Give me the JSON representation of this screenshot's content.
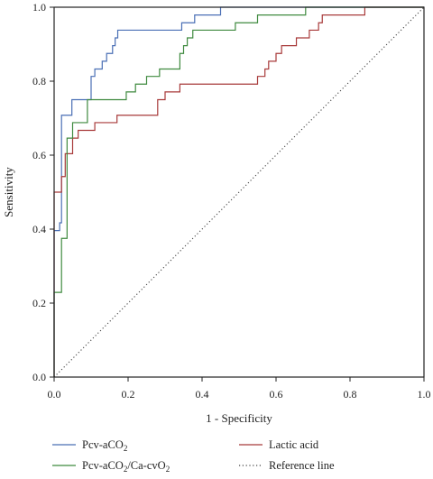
{
  "chart_data": {
    "type": "line",
    "title": "",
    "xlabel": "1 - Specificity",
    "ylabel": "Sensitivity",
    "xlim": [
      0,
      1
    ],
    "ylim": [
      0,
      1
    ],
    "x_ticks": [
      "0.0",
      "0.2",
      "0.4",
      "0.6",
      "0.8",
      "1.0"
    ],
    "y_ticks": [
      "0.0",
      "0.2",
      "0.4",
      "0.6",
      "0.8",
      "1.0"
    ],
    "grid": false,
    "legend_position": "bottom",
    "series": [
      {
        "name": "Pcv-aCO2",
        "legend_main": "Pcv-aCO",
        "legend_parts": [
          [
            "Pcv-aCO",
            ""
          ],
          [
            "2",
            "sub"
          ]
        ],
        "color": "#4a6fb5",
        "style": "solid",
        "points": [
          [
            0,
            0
          ],
          [
            0,
            0.396
          ],
          [
            0.015,
            0.396
          ],
          [
            0.015,
            0.417
          ],
          [
            0.02,
            0.417
          ],
          [
            0.02,
            0.708
          ],
          [
            0.048,
            0.708
          ],
          [
            0.048,
            0.75
          ],
          [
            0.1,
            0.75
          ],
          [
            0.1,
            0.813
          ],
          [
            0.11,
            0.813
          ],
          [
            0.11,
            0.833
          ],
          [
            0.13,
            0.833
          ],
          [
            0.13,
            0.854
          ],
          [
            0.142,
            0.854
          ],
          [
            0.142,
            0.875
          ],
          [
            0.158,
            0.875
          ],
          [
            0.158,
            0.896
          ],
          [
            0.165,
            0.896
          ],
          [
            0.165,
            0.917
          ],
          [
            0.172,
            0.917
          ],
          [
            0.172,
            0.938
          ],
          [
            0.345,
            0.938
          ],
          [
            0.345,
            0.958
          ],
          [
            0.38,
            0.958
          ],
          [
            0.38,
            0.979
          ],
          [
            0.45,
            0.979
          ],
          [
            0.45,
            1.0
          ],
          [
            1.0,
            1.0
          ]
        ]
      },
      {
        "name": "Lactic acid",
        "legend_main": "Lactic acid",
        "legend_parts": [
          [
            "Lactic acid",
            ""
          ]
        ],
        "color": "#a83a3a",
        "style": "solid",
        "points": [
          [
            0,
            0
          ],
          [
            0,
            0.5
          ],
          [
            0.02,
            0.5
          ],
          [
            0.02,
            0.542
          ],
          [
            0.03,
            0.542
          ],
          [
            0.03,
            0.604
          ],
          [
            0.05,
            0.604
          ],
          [
            0.05,
            0.646
          ],
          [
            0.065,
            0.646
          ],
          [
            0.065,
            0.667
          ],
          [
            0.11,
            0.667
          ],
          [
            0.11,
            0.688
          ],
          [
            0.17,
            0.688
          ],
          [
            0.17,
            0.708
          ],
          [
            0.28,
            0.708
          ],
          [
            0.28,
            0.75
          ],
          [
            0.3,
            0.75
          ],
          [
            0.3,
            0.771
          ],
          [
            0.34,
            0.771
          ],
          [
            0.34,
            0.792
          ],
          [
            0.55,
            0.792
          ],
          [
            0.55,
            0.813
          ],
          [
            0.57,
            0.813
          ],
          [
            0.57,
            0.833
          ],
          [
            0.58,
            0.833
          ],
          [
            0.58,
            0.854
          ],
          [
            0.6,
            0.854
          ],
          [
            0.6,
            0.875
          ],
          [
            0.615,
            0.875
          ],
          [
            0.615,
            0.896
          ],
          [
            0.655,
            0.896
          ],
          [
            0.655,
            0.917
          ],
          [
            0.69,
            0.917
          ],
          [
            0.69,
            0.938
          ],
          [
            0.715,
            0.938
          ],
          [
            0.715,
            0.958
          ],
          [
            0.725,
            0.958
          ],
          [
            0.725,
            0.979
          ],
          [
            0.84,
            0.979
          ],
          [
            0.84,
            1.0
          ],
          [
            1.0,
            1.0
          ]
        ]
      },
      {
        "name": "Pcv-aCO2/Ca-cvO2",
        "legend_main": "Pcv-aCO/Ca-cvO",
        "legend_parts": [
          [
            "Pcv-aCO",
            ""
          ],
          [
            "2",
            "sub"
          ],
          [
            "/Ca-cvO",
            ""
          ],
          [
            "2",
            "sub"
          ]
        ],
        "color": "#3f8a3f",
        "style": "solid",
        "points": [
          [
            0,
            0
          ],
          [
            0,
            0.229
          ],
          [
            0.02,
            0.229
          ],
          [
            0.02,
            0.375
          ],
          [
            0.035,
            0.375
          ],
          [
            0.035,
            0.646
          ],
          [
            0.05,
            0.646
          ],
          [
            0.05,
            0.688
          ],
          [
            0.09,
            0.688
          ],
          [
            0.09,
            0.75
          ],
          [
            0.195,
            0.75
          ],
          [
            0.195,
            0.771
          ],
          [
            0.22,
            0.771
          ],
          [
            0.22,
            0.792
          ],
          [
            0.25,
            0.792
          ],
          [
            0.25,
            0.813
          ],
          [
            0.285,
            0.813
          ],
          [
            0.285,
            0.833
          ],
          [
            0.34,
            0.833
          ],
          [
            0.34,
            0.875
          ],
          [
            0.35,
            0.875
          ],
          [
            0.35,
            0.896
          ],
          [
            0.36,
            0.896
          ],
          [
            0.36,
            0.917
          ],
          [
            0.375,
            0.917
          ],
          [
            0.375,
            0.938
          ],
          [
            0.49,
            0.938
          ],
          [
            0.49,
            0.958
          ],
          [
            0.55,
            0.958
          ],
          [
            0.55,
            0.979
          ],
          [
            0.68,
            0.979
          ],
          [
            0.68,
            1.0
          ],
          [
            1.0,
            1.0
          ]
        ]
      },
      {
        "name": "Reference line",
        "legend_main": "Reference line",
        "legend_parts": [
          [
            "Reference line",
            ""
          ]
        ],
        "color": "#444444",
        "style": "dotted",
        "points": [
          [
            0,
            0
          ],
          [
            1,
            1
          ]
        ]
      }
    ]
  }
}
